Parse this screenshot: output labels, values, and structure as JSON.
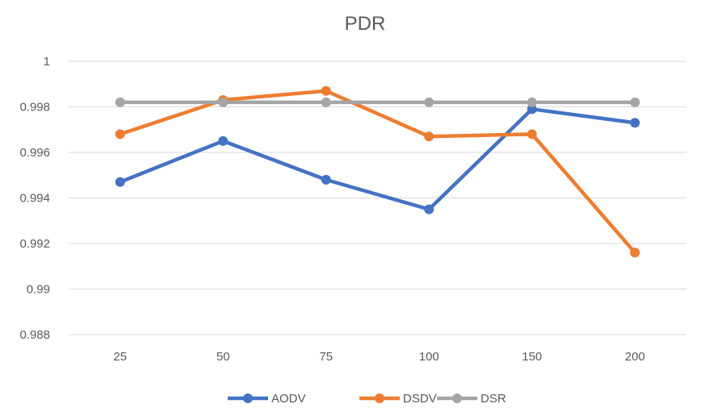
{
  "chart_data": {
    "type": "line",
    "title": "PDR",
    "xlabel": "",
    "ylabel": "",
    "categories": [
      "25",
      "50",
      "75",
      "100",
      "150",
      "200"
    ],
    "ylim": [
      0.988,
      1
    ],
    "yticks": [
      "0.988",
      "0.99",
      "0.992",
      "0.994",
      "0.996",
      "0.998",
      "1"
    ],
    "grid": true,
    "legend_position": "bottom",
    "series": [
      {
        "name": "AODV",
        "color": "#4472c4",
        "values": [
          0.9947,
          0.9965,
          0.9948,
          0.9935,
          0.9979,
          0.9973
        ]
      },
      {
        "name": "DSDV",
        "color": "#ed7d31",
        "values": [
          0.9968,
          0.9983,
          0.9987,
          0.9967,
          0.9968,
          0.9916
        ]
      },
      {
        "name": "DSR",
        "color": "#a5a5a5",
        "values": [
          0.9982,
          0.9982,
          0.9982,
          0.9982,
          0.9982,
          0.9982
        ]
      }
    ]
  }
}
